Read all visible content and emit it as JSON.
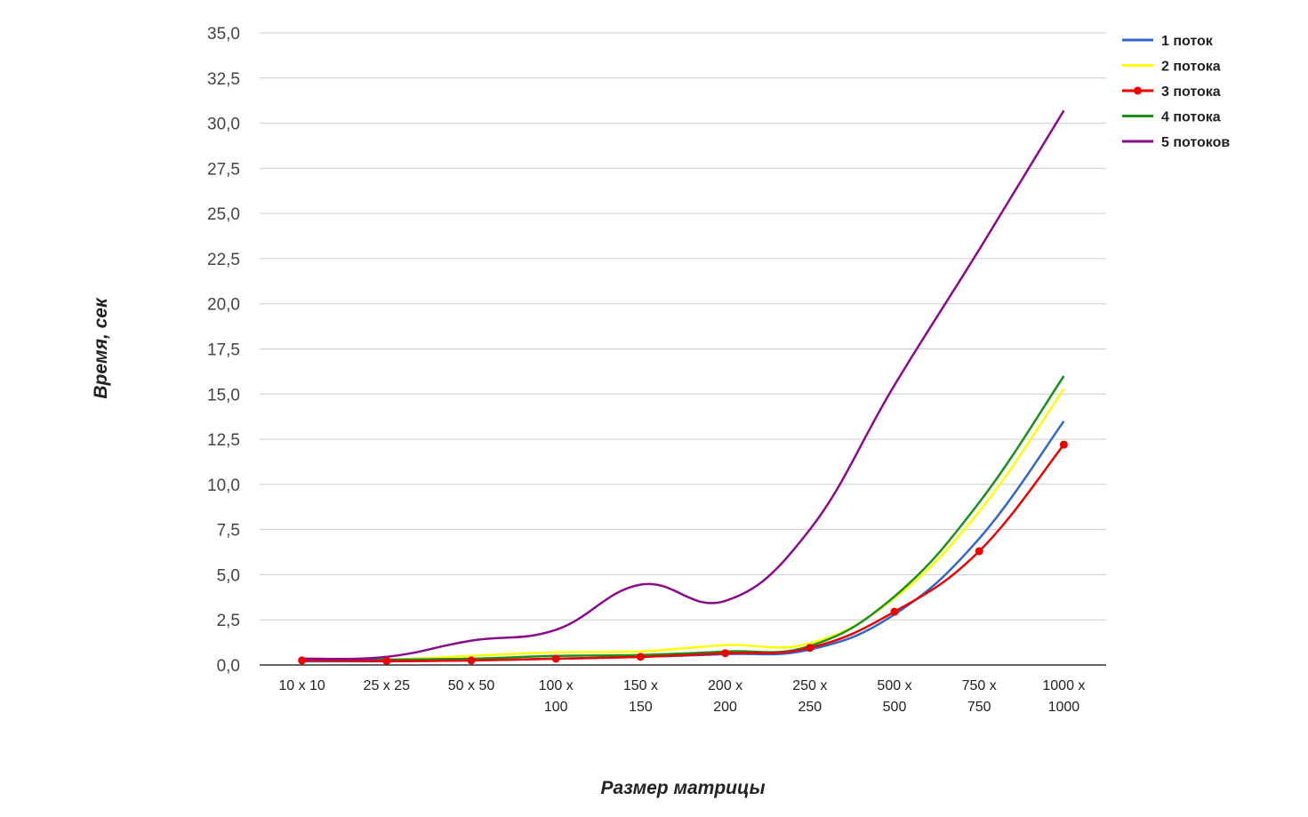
{
  "chart_data": {
    "type": "line",
    "xlabel": "Размер матрицы",
    "ylabel": "Время, сек",
    "categories": [
      [
        "10 x 10"
      ],
      [
        "25 x 25"
      ],
      [
        "50 x 50"
      ],
      [
        "100 x",
        "100"
      ],
      [
        "150 x",
        "150"
      ],
      [
        "200 x",
        "200"
      ],
      [
        "250 x",
        "250"
      ],
      [
        "500 x",
        "500"
      ],
      [
        "750 x",
        "750"
      ],
      [
        "1000 x",
        "1000"
      ]
    ],
    "ylim": [
      0,
      35
    ],
    "yticks": [
      "0,0",
      "2,5",
      "5,0",
      "7,5",
      "10,0",
      "12,5",
      "15,0",
      "17,5",
      "20,0",
      "22,5",
      "25,0",
      "27,5",
      "30,0",
      "32,5",
      "35,0"
    ],
    "grid": true,
    "legend_position": "top-right",
    "series": [
      {
        "name": "1 поток",
        "color": "#3366cc",
        "markers": false,
        "values": [
          0.2,
          0.2,
          0.25,
          0.35,
          0.45,
          0.6,
          0.85,
          2.8,
          7.0,
          13.5
        ]
      },
      {
        "name": "2 потока",
        "color": "#ffff00",
        "markers": false,
        "values": [
          0.3,
          0.3,
          0.5,
          0.7,
          0.75,
          1.1,
          1.2,
          3.7,
          8.5,
          15.3
        ]
      },
      {
        "name": "3 потока",
        "color": "#ee0000",
        "markers": true,
        "values": [
          0.25,
          0.22,
          0.25,
          0.35,
          0.45,
          0.65,
          0.95,
          2.95,
          6.3,
          12.2
        ]
      },
      {
        "name": "4 потока",
        "color": "#1a8f1a",
        "markers": false,
        "values": [
          0.3,
          0.3,
          0.35,
          0.5,
          0.55,
          0.75,
          1.05,
          3.8,
          9.0,
          16.0
        ]
      },
      {
        "name": "5 потоков",
        "color": "#8b0a8b",
        "markers": false,
        "values": [
          0.35,
          0.45,
          1.35,
          1.95,
          4.45,
          3.55,
          7.5,
          15.5,
          23.0,
          30.7
        ]
      }
    ]
  }
}
